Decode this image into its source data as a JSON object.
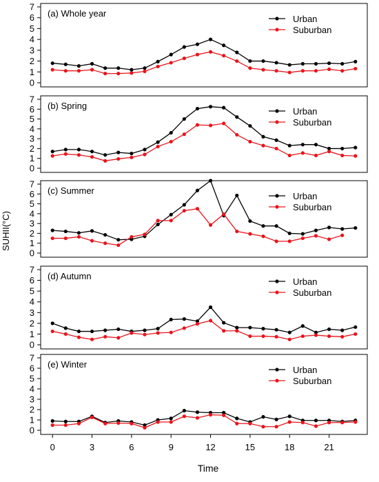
{
  "figure": {
    "ylabel": "SUHII(°C)",
    "xlabel": "Time",
    "x_ticks": [
      0,
      3,
      6,
      9,
      12,
      15,
      18,
      21
    ],
    "colors": {
      "urban": "#000000",
      "suburban": "#e8141c"
    }
  },
  "chart_data": [
    {
      "type": "line",
      "title": "(a) Whole year",
      "x": [
        0,
        1,
        2,
        3,
        4,
        5,
        6,
        7,
        8,
        9,
        10,
        11,
        12,
        13,
        14,
        15,
        16,
        17,
        18,
        19,
        20,
        21,
        22,
        23
      ],
      "ylim": [
        0,
        7
      ],
      "yticks": [
        0,
        1,
        2,
        3,
        4,
        5,
        6,
        7
      ],
      "legend_position": "top-right",
      "grid": false,
      "series": [
        {
          "name": "Urban",
          "color": "#000000",
          "values": [
            1.8,
            1.7,
            1.55,
            1.75,
            1.35,
            1.35,
            1.2,
            1.35,
            1.95,
            2.6,
            3.3,
            3.55,
            4.0,
            3.45,
            2.8,
            2.0,
            2.0,
            1.85,
            1.65,
            1.75,
            1.75,
            1.8,
            1.75,
            1.95
          ]
        },
        {
          "name": "Suburban",
          "color": "#e8141c",
          "values": [
            1.2,
            1.1,
            1.1,
            1.2,
            0.85,
            0.85,
            0.9,
            1.05,
            1.5,
            1.85,
            2.25,
            2.6,
            2.85,
            2.5,
            2.0,
            1.35,
            1.2,
            1.1,
            0.95,
            1.1,
            1.1,
            1.25,
            1.1,
            1.3
          ]
        }
      ]
    },
    {
      "type": "line",
      "title": "(b) Spring",
      "x": [
        0,
        1,
        2,
        3,
        4,
        5,
        6,
        7,
        8,
        9,
        10,
        11,
        12,
        13,
        14,
        15,
        16,
        17,
        18,
        19,
        20,
        21,
        22,
        23
      ],
      "ylim": [
        0,
        7
      ],
      "yticks": [
        0,
        1,
        2,
        3,
        4,
        5,
        6,
        7
      ],
      "legend_position": "top-right",
      "grid": false,
      "series": [
        {
          "name": "Urban",
          "color": "#000000",
          "values": [
            1.7,
            1.9,
            1.9,
            1.7,
            1.35,
            1.6,
            1.5,
            1.9,
            2.65,
            3.6,
            5.0,
            6.05,
            6.25,
            6.15,
            5.2,
            4.3,
            3.2,
            2.85,
            2.3,
            2.4,
            2.4,
            2.0,
            2.0,
            2.1
          ]
        },
        {
          "name": "Suburban",
          "color": "#e8141c",
          "values": [
            1.25,
            1.45,
            1.35,
            1.15,
            0.75,
            0.95,
            1.1,
            1.4,
            2.2,
            2.7,
            3.45,
            4.4,
            4.35,
            4.55,
            3.4,
            2.7,
            2.3,
            2.0,
            1.3,
            1.55,
            1.3,
            1.7,
            1.3,
            1.25
          ]
        }
      ]
    },
    {
      "type": "line",
      "title": "(c) Summer",
      "x": [
        0,
        1,
        2,
        3,
        4,
        5,
        6,
        7,
        8,
        9,
        10,
        11,
        12,
        13,
        14,
        15,
        16,
        17,
        18,
        19,
        20,
        21,
        22,
        23
      ],
      "ylim": [
        0,
        7
      ],
      "yticks": [
        0,
        1,
        2,
        3,
        4,
        5,
        6,
        7
      ],
      "legend_position": "top-right",
      "grid": false,
      "series": [
        {
          "name": "Urban",
          "color": "#000000",
          "values": [
            2.3,
            2.2,
            2.05,
            2.25,
            1.85,
            1.35,
            1.4,
            1.7,
            2.9,
            3.9,
            4.9,
            6.35,
            7.35,
            3.8,
            5.85,
            3.25,
            2.75,
            2.75,
            2.0,
            1.95,
            2.3,
            2.6,
            2.45,
            2.55
          ]
        },
        {
          "name": "Suburban",
          "color": "#e8141c",
          "values": [
            1.5,
            1.5,
            1.65,
            1.25,
            1.0,
            0.8,
            1.65,
            1.9,
            3.3,
            3.3,
            4.3,
            4.5,
            2.85,
            3.95,
            2.2,
            1.95,
            1.7,
            1.2,
            1.2,
            1.5,
            1.75,
            1.4,
            1.8,
            null
          ]
        }
      ]
    },
    {
      "type": "line",
      "title": "(d) Autumn",
      "x": [
        0,
        1,
        2,
        3,
        4,
        5,
        6,
        7,
        8,
        9,
        10,
        11,
        12,
        13,
        14,
        15,
        16,
        17,
        18,
        19,
        20,
        21,
        22,
        23
      ],
      "ylim": [
        0,
        7
      ],
      "yticks": [
        0,
        1,
        2,
        3,
        4,
        5,
        6,
        7
      ],
      "legend_position": "top-right",
      "grid": false,
      "series": [
        {
          "name": "Urban",
          "color": "#000000",
          "values": [
            2.0,
            1.55,
            1.25,
            1.25,
            1.35,
            1.45,
            1.25,
            1.35,
            1.5,
            2.35,
            2.4,
            2.2,
            3.5,
            2.05,
            1.6,
            1.6,
            1.5,
            1.4,
            1.15,
            1.75,
            1.15,
            1.45,
            1.35,
            1.65
          ]
        },
        {
          "name": "Suburban",
          "color": "#e8141c",
          "values": [
            1.25,
            1.0,
            0.7,
            0.5,
            0.75,
            0.65,
            1.1,
            0.95,
            1.1,
            1.15,
            1.55,
            1.95,
            2.25,
            1.3,
            1.3,
            0.8,
            0.8,
            0.75,
            0.5,
            0.8,
            0.9,
            0.8,
            0.75,
            1.0
          ]
        }
      ]
    },
    {
      "type": "line",
      "title": "(e) Winter",
      "x": [
        0,
        1,
        2,
        3,
        4,
        5,
        6,
        7,
        8,
        9,
        10,
        11,
        12,
        13,
        14,
        15,
        16,
        17,
        18,
        19,
        20,
        21,
        22,
        23
      ],
      "ylim": [
        0,
        7
      ],
      "yticks": [
        0,
        1,
        2,
        3,
        4,
        5,
        6,
        7
      ],
      "legend_position": "top-right",
      "grid": false,
      "series": [
        {
          "name": "Urban",
          "color": "#000000",
          "values": [
            0.9,
            0.85,
            0.85,
            1.35,
            0.75,
            0.9,
            0.8,
            0.5,
            1.0,
            1.15,
            1.9,
            1.75,
            1.7,
            1.7,
            1.15,
            0.8,
            1.3,
            1.05,
            1.35,
            0.95,
            0.95,
            0.95,
            0.85,
            0.95
          ]
        },
        {
          "name": "Suburban",
          "color": "#e8141c",
          "values": [
            0.5,
            0.5,
            0.65,
            1.25,
            0.65,
            0.7,
            0.65,
            0.25,
            0.8,
            0.8,
            1.35,
            1.2,
            1.5,
            1.45,
            0.65,
            0.65,
            0.35,
            0.35,
            0.8,
            0.75,
            0.4,
            0.75,
            0.75,
            0.8
          ]
        }
      ]
    }
  ]
}
